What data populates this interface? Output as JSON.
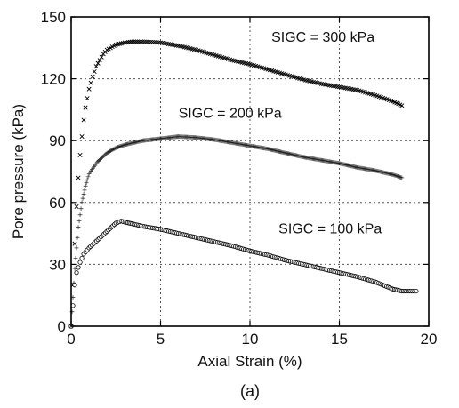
{
  "chart_data": {
    "type": "scatter",
    "title": "",
    "xlabel": "Axial Strain (%)",
    "ylabel": "Pore pressure (kPa)",
    "caption": "(a)",
    "xlim": [
      0,
      20
    ],
    "ylim": [
      0,
      150
    ],
    "xticks": [
      0,
      5,
      10,
      15,
      20
    ],
    "yticks": [
      0,
      30,
      60,
      90,
      120,
      150
    ],
    "grid": true,
    "series": [
      {
        "name": "SIGC = 300 kPa",
        "marker": "x",
        "x": [
          0,
          0.1,
          0.2,
          0.3,
          0.4,
          0.5,
          0.6,
          0.7,
          0.8,
          1.0,
          1.2,
          1.4,
          1.6,
          1.8,
          2.0,
          2.5,
          3.0,
          3.5,
          4.0,
          5.0,
          6.0,
          7.0,
          8.0,
          9.0,
          10.0,
          11.0,
          12.0,
          13.0,
          14.0,
          15.0,
          16.0,
          17.0,
          18.0,
          18.5
        ],
        "y": [
          0,
          20,
          40,
          58,
          72,
          83,
          92,
          100,
          106,
          115,
          121,
          126,
          129,
          132,
          134,
          136.5,
          137.5,
          138,
          138,
          137.5,
          136,
          134,
          131.5,
          129,
          127,
          124.5,
          122,
          119.5,
          117.5,
          116,
          114.5,
          112,
          109,
          107
        ]
      },
      {
        "name": "SIGC = 200 kPa",
        "marker": "+",
        "x": [
          0,
          0.2,
          0.4,
          0.6,
          0.8,
          1.0,
          1.5,
          2.0,
          2.5,
          3.0,
          4.0,
          5.0,
          6.0,
          7.0,
          8.0,
          9.0,
          10.0,
          11.0,
          12.0,
          13.0,
          14.0,
          15.0,
          16.0,
          17.0,
          18.0,
          18.5
        ],
        "y": [
          0,
          28,
          48,
          60,
          68,
          74,
          80,
          84,
          86.5,
          88,
          90,
          91,
          92,
          91.5,
          90.5,
          89,
          87.5,
          86,
          84,
          82,
          80.5,
          79,
          77,
          75.5,
          73.5,
          72
        ]
      },
      {
        "name": "SIGC = 100 kPa",
        "marker": "o",
        "x": [
          0,
          0.1,
          0.2,
          0.3,
          0.5,
          0.7,
          1.0,
          1.5,
          2.0,
          2.5,
          2.8,
          3.0,
          3.5,
          4.0,
          5.0,
          6.0,
          7.0,
          8.0,
          9.0,
          10.0,
          11.0,
          12.0,
          13.0,
          14.0,
          15.0,
          16.0,
          17.0,
          18.0,
          18.5,
          19.0,
          19.3
        ],
        "y": [
          0,
          10,
          20,
          26,
          31,
          35,
          38,
          42,
          46,
          50,
          51,
          50.5,
          49.5,
          48.5,
          47,
          45,
          43,
          41,
          39,
          36.5,
          34.5,
          32,
          30,
          28,
          26,
          24,
          21.5,
          18,
          17,
          17,
          17
        ]
      }
    ],
    "annotations": [
      {
        "text": "SIGC = 300 kPa",
        "x": 11.2,
        "y": 138
      },
      {
        "text": "SIGC = 200 kPa",
        "x": 6.0,
        "y": 101
      },
      {
        "text": "SIGC = 100 kPa",
        "x": 11.6,
        "y": 45
      }
    ]
  }
}
